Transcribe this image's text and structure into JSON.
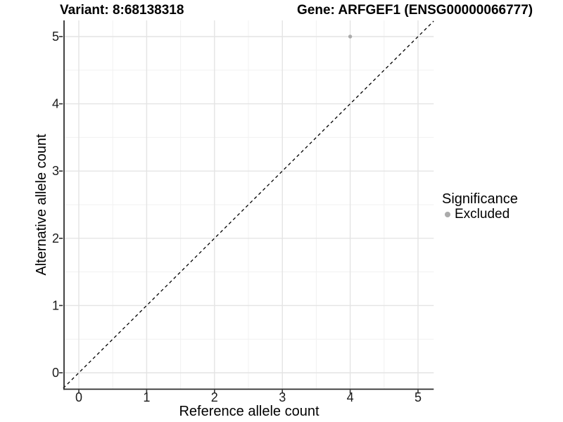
{
  "title": {
    "variant": "Variant: 8:68138318",
    "gene": "Gene: ARFGEF1 (ENSG00000066777)"
  },
  "chart_data": {
    "type": "scatter",
    "titles": [
      "Variant: 8:68138318",
      "Gene: ARFGEF1 (ENSG00000066777)"
    ],
    "xlabel": "Reference allele count",
    "ylabel": "Alternative allele count",
    "x_ticks": [
      0,
      1,
      2,
      3,
      4,
      5
    ],
    "x_tick_labels": [
      "0",
      "1",
      "2",
      "3",
      "4",
      "5"
    ],
    "y_ticks": [
      0,
      1,
      2,
      3,
      4,
      5
    ],
    "y_tick_labels": [
      "0",
      "1",
      "2",
      "3",
      "4",
      "5"
    ],
    "xlim": [
      -0.23,
      5.23
    ],
    "ylim": [
      -0.23,
      5.23
    ],
    "grid": {
      "major": true,
      "minor": true,
      "background": "white"
    },
    "reference_line": {
      "kind": "identity y=x",
      "style": "dashed",
      "x1": -0.23,
      "y1": -0.23,
      "x2": 5.23,
      "y2": 5.23
    },
    "series": [
      {
        "name": "Excluded",
        "color": "#ABABAB",
        "points": [
          {
            "x": 4,
            "y": 5
          }
        ]
      }
    ],
    "legend": {
      "title": "Significance",
      "position": "right-middle",
      "items": [
        {
          "label": "Excluded",
          "color": "#ABABAB"
        }
      ]
    }
  },
  "colors": {
    "background": "#FFFFFF",
    "grid_major": "#E4E4E4",
    "grid_minor": "#F1F1F1",
    "axis": "#2E2E2E",
    "tick_text": "#1A1A1A",
    "title_text": "#000000",
    "reference_line": "#000000",
    "point": "#ABABAB"
  }
}
